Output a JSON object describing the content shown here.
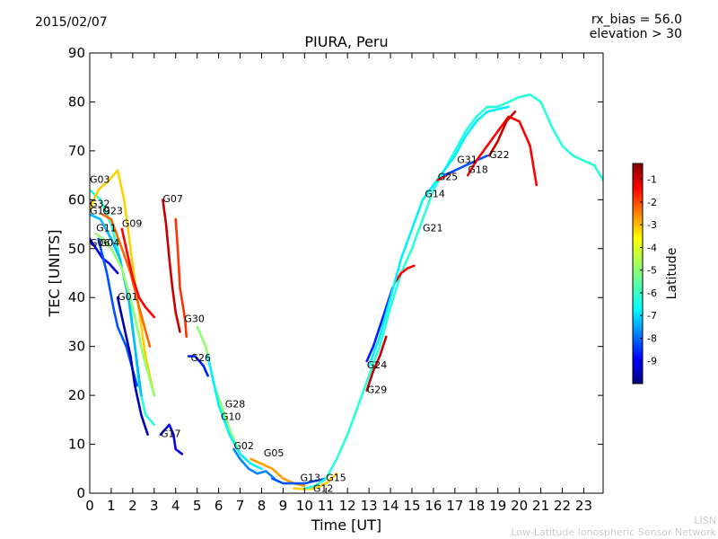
{
  "header": {
    "date": "2015/02/07",
    "rx_bias": "rx_bias = 56.0",
    "elevation": "elevation > 30"
  },
  "footer": {
    "line1": "LISN",
    "line2": "Low-Latitude Ionospheric Sensor Network"
  },
  "chart_data": {
    "type": "line",
    "title": "PIURA, Peru",
    "xlabel": "Time [UT]",
    "ylabel": "TEC [UNITS]",
    "xlim": [
      0,
      23.9
    ],
    "ylim": [
      0,
      90
    ],
    "xticks": [
      0,
      1,
      2,
      3,
      4,
      5,
      6,
      7,
      8,
      9,
      10,
      11,
      12,
      13,
      14,
      15,
      16,
      17,
      18,
      19,
      20,
      21,
      22,
      23
    ],
    "yticks": [
      0,
      10,
      20,
      30,
      40,
      50,
      60,
      70,
      80,
      90
    ],
    "grid": false,
    "colorbar": {
      "label": "Latitude",
      "range": [
        -10,
        -0.3
      ],
      "ticks": [
        -1,
        -2,
        -3,
        -4,
        -5,
        -6,
        -7,
        -8,
        -9
      ],
      "colors": [
        "#00007f",
        "#0000ff",
        "#007fff",
        "#00ffff",
        "#7fff7f",
        "#ffff00",
        "#ff7f00",
        "#ff0000",
        "#7f0000"
      ]
    },
    "series": [
      {
        "name": "G03",
        "label_at": [
          0,
          63.5
        ],
        "color_lat": -6,
        "points": [
          [
            0,
            62
          ],
          [
            0.5,
            60
          ],
          [
            1,
            55
          ],
          [
            1.3,
            50
          ],
          [
            1.6,
            44
          ],
          [
            1.9,
            38
          ],
          [
            2.1,
            30
          ],
          [
            2.3,
            22
          ],
          [
            2.6,
            16
          ],
          [
            3.0,
            14
          ]
        ]
      },
      {
        "name": "G32",
        "label_at": [
          0,
          58.5
        ],
        "color_lat": -3.5,
        "points": [
          [
            0,
            58
          ],
          [
            0.4,
            62
          ],
          [
            0.9,
            64
          ],
          [
            1.3,
            66
          ],
          [
            1.6,
            60
          ],
          [
            1.9,
            50
          ],
          [
            2.2,
            40
          ],
          [
            2.6,
            28
          ],
          [
            3,
            20
          ]
        ]
      },
      {
        "name": "G19",
        "label_at": [
          0,
          57
        ],
        "color_lat": -7,
        "points": [
          [
            0,
            57
          ],
          [
            0.5,
            56
          ],
          [
            1,
            52
          ],
          [
            1.4,
            48
          ],
          [
            1.8,
            40
          ],
          [
            2.1,
            30
          ],
          [
            2.4,
            20
          ]
        ]
      },
      {
        "name": "G23",
        "label_at": [
          0.6,
          57
        ],
        "color_lat": -2.5,
        "points": [
          [
            0.6,
            57
          ],
          [
            1.0,
            56
          ],
          [
            1.5,
            50
          ],
          [
            1.9,
            45
          ],
          [
            2.3,
            38
          ],
          [
            2.8,
            30
          ]
        ]
      },
      {
        "name": "G11",
        "label_at": [
          0.3,
          53.5
        ],
        "color_lat": -5,
        "points": [
          [
            0.3,
            53
          ],
          [
            0.6,
            52
          ],
          [
            1,
            50
          ],
          [
            1.5,
            46
          ],
          [
            2,
            38
          ],
          [
            2.5,
            28
          ],
          [
            3,
            20
          ]
        ]
      },
      {
        "name": "G09",
        "label_at": [
          1.5,
          54.5
        ],
        "color_lat": -1.5,
        "points": [
          [
            1.5,
            54
          ],
          [
            1.8,
            48
          ],
          [
            2.0,
            44
          ],
          [
            2.3,
            40
          ],
          [
            2.6,
            38
          ],
          [
            3,
            36
          ]
        ]
      },
      {
        "name": "G06",
        "label_at": [
          0,
          50.5
        ],
        "color_lat": -9,
        "points": [
          [
            0,
            52
          ],
          [
            0.3,
            50
          ],
          [
            0.6,
            48
          ],
          [
            0.9,
            47
          ],
          [
            1.3,
            45
          ]
        ]
      },
      {
        "name": "G04",
        "label_at": [
          0.45,
          50.5
        ],
        "color_lat": -8,
        "points": [
          [
            0.4,
            52
          ],
          [
            0.8,
            45
          ],
          [
            1.1,
            38
          ],
          [
            1.3,
            34
          ],
          [
            1.7,
            30
          ],
          [
            2.2,
            22
          ]
        ]
      },
      {
        "name": "G01",
        "label_at": [
          1.3,
          39.5
        ],
        "color_lat": -9.5,
        "points": [
          [
            1.3,
            40
          ],
          [
            1.6,
            34
          ],
          [
            1.9,
            28
          ],
          [
            2.1,
            22
          ],
          [
            2.4,
            16
          ],
          [
            2.7,
            12
          ]
        ]
      },
      {
        "name": "G07",
        "label_at": [
          3.4,
          59.5
        ],
        "color_lat": -1,
        "points": [
          [
            3.4,
            60
          ],
          [
            3.55,
            55
          ],
          [
            3.7,
            48
          ],
          [
            3.85,
            42
          ],
          [
            4.0,
            37
          ],
          [
            4.2,
            33
          ]
        ]
      },
      {
        "name": "G30",
        "label_at": [
          4.4,
          35
        ],
        "color_lat": -2,
        "points": [
          [
            4.0,
            56
          ],
          [
            4.1,
            50
          ],
          [
            4.2,
            42
          ],
          [
            4.35,
            38
          ],
          [
            4.45,
            35
          ],
          [
            4.5,
            32
          ]
        ]
      },
      {
        "name": "G26",
        "label_at": [
          4.7,
          27
        ],
        "color_lat": -8.5,
        "points": [
          [
            4.6,
            28
          ],
          [
            4.9,
            28
          ],
          [
            5.1,
            27
          ],
          [
            5.3,
            26
          ],
          [
            5.5,
            24
          ]
        ]
      },
      {
        "name": "G17",
        "label_at": [
          3.3,
          11.5
        ],
        "color_lat": -9,
        "points": [
          [
            3.3,
            12
          ],
          [
            3.7,
            14
          ],
          [
            3.9,
            12
          ],
          [
            4.0,
            9
          ],
          [
            4.3,
            8
          ]
        ]
      },
      {
        "name": "G28",
        "label_at": [
          6.3,
          17.5
        ],
        "color_lat": -5,
        "points": [
          [
            5.0,
            34
          ],
          [
            5.4,
            30
          ],
          [
            5.8,
            22
          ],
          [
            6.2,
            17
          ],
          [
            6.6,
            12
          ],
          [
            7.0,
            8
          ],
          [
            7.5,
            6
          ]
        ]
      },
      {
        "name": "G10",
        "label_at": [
          6.1,
          15
        ],
        "color_lat": -6.5,
        "points": [
          [
            5.5,
            28
          ],
          [
            6.0,
            18
          ],
          [
            6.5,
            12
          ],
          [
            7.0,
            8
          ],
          [
            7.5,
            6
          ],
          [
            8.0,
            5
          ]
        ]
      },
      {
        "name": "G02",
        "label_at": [
          6.7,
          9
        ],
        "color_lat": -7.5,
        "points": [
          [
            6.7,
            9
          ],
          [
            7.0,
            7
          ],
          [
            7.4,
            5
          ],
          [
            7.8,
            4
          ],
          [
            8.2,
            4.5
          ],
          [
            8.6,
            3
          ]
        ]
      },
      {
        "name": "G05",
        "label_at": [
          8.1,
          7.5
        ],
        "color_lat": -3,
        "points": [
          [
            7.5,
            7
          ],
          [
            8.0,
            6
          ],
          [
            8.5,
            5
          ],
          [
            9.0,
            3
          ],
          [
            9.5,
            2
          ],
          [
            10,
            1.5
          ]
        ]
      },
      {
        "name": "G13",
        "label_at": [
          9.8,
          2.5
        ],
        "color_lat": -8,
        "points": [
          [
            8.5,
            3
          ],
          [
            9,
            2
          ],
          [
            9.5,
            2
          ],
          [
            10,
            2
          ],
          [
            10.5,
            2.5
          ],
          [
            11,
            3
          ]
        ]
      },
      {
        "name": "G12",
        "label_at": [
          10.4,
          0.3
        ],
        "color_lat": -3.5,
        "points": [
          [
            9.5,
            1
          ],
          [
            10,
            0.8
          ],
          [
            10.5,
            1
          ],
          [
            11,
            2
          ],
          [
            11.5,
            4
          ]
        ]
      },
      {
        "name": "G15",
        "label_at": [
          11,
          2.5
        ],
        "color_lat": -6,
        "points": [
          [
            10,
            1
          ],
          [
            10.5,
            1.5
          ],
          [
            11,
            3
          ],
          [
            11.5,
            7
          ],
          [
            12,
            12
          ],
          [
            12.5,
            18
          ],
          [
            13,
            24
          ],
          [
            13.5,
            30
          ],
          [
            14,
            38
          ],
          [
            14.5,
            45
          ],
          [
            15,
            50
          ],
          [
            15.5,
            56
          ],
          [
            16,
            62
          ],
          [
            16.5,
            66
          ],
          [
            17,
            70
          ],
          [
            17.5,
            74
          ],
          [
            18,
            77
          ],
          [
            18.5,
            79
          ],
          [
            19,
            79
          ],
          [
            19.5,
            80
          ],
          [
            20,
            81
          ],
          [
            20.5,
            81.5
          ],
          [
            21,
            80
          ],
          [
            21.5,
            75
          ],
          [
            22,
            71
          ],
          [
            22.5,
            69
          ],
          [
            23,
            68
          ],
          [
            23.5,
            67
          ],
          [
            23.9,
            64
          ]
        ]
      },
      {
        "name": "G24",
        "label_at": [
          12.9,
          25.5
        ],
        "color_lat": -8.5,
        "points": [
          [
            12.9,
            27
          ],
          [
            13.2,
            30
          ],
          [
            13.5,
            34
          ],
          [
            13.8,
            38
          ],
          [
            14.1,
            42
          ]
        ]
      },
      {
        "name": "G29",
        "label_at": [
          12.9,
          20.5
        ],
        "color_lat": -1,
        "points": [
          [
            12.9,
            21
          ],
          [
            13.2,
            25
          ],
          [
            13.5,
            28
          ],
          [
            13.8,
            32
          ]
        ]
      },
      {
        "name": "G21",
        "label_at": [
          15.5,
          53.5
        ],
        "color_lat": -1.5,
        "points": [
          [
            14.2,
            43
          ],
          [
            14.5,
            45
          ],
          [
            14.8,
            46
          ],
          [
            15.1,
            46.5
          ]
        ]
      },
      {
        "name": "G14",
        "label_at": [
          15.6,
          60.5
        ],
        "color_lat": -6.5,
        "points": [
          [
            13,
            26
          ],
          [
            13.5,
            32
          ],
          [
            14,
            40
          ],
          [
            14.5,
            48
          ],
          [
            15,
            54
          ],
          [
            15.5,
            60
          ],
          [
            16,
            63
          ],
          [
            16.5,
            66
          ],
          [
            17,
            69
          ],
          [
            17.5,
            73
          ],
          [
            18,
            76
          ],
          [
            18.5,
            78
          ],
          [
            19,
            78.5
          ],
          [
            19.5,
            79
          ]
        ]
      },
      {
        "name": "G25",
        "label_at": [
          16.2,
          64
        ],
        "color_lat": -1.5,
        "points": [
          [
            16.2,
            64
          ],
          [
            16.6,
            65
          ],
          [
            17,
            66
          ]
        ]
      },
      {
        "name": "G31",
        "label_at": [
          17.1,
          67.5
        ],
        "color_lat": -8,
        "points": [
          [
            16.5,
            65
          ],
          [
            17,
            66
          ],
          [
            17.5,
            67
          ],
          [
            18,
            68
          ],
          [
            18.5,
            69
          ]
        ]
      },
      {
        "name": "G18",
        "label_at": [
          17.6,
          65.5
        ],
        "color_lat": -1.5,
        "points": [
          [
            17.6,
            65
          ],
          [
            18,
            68
          ],
          [
            18.5,
            71
          ],
          [
            19,
            74
          ],
          [
            19.5,
            77
          ],
          [
            20,
            76
          ],
          [
            20.5,
            71
          ],
          [
            20.8,
            63
          ]
        ]
      },
      {
        "name": "G22",
        "label_at": [
          18.6,
          68.5
        ],
        "color_lat": -1,
        "points": [
          [
            18.6,
            69
          ],
          [
            19,
            72
          ],
          [
            19.4,
            76
          ],
          [
            19.8,
            78
          ]
        ]
      }
    ]
  }
}
